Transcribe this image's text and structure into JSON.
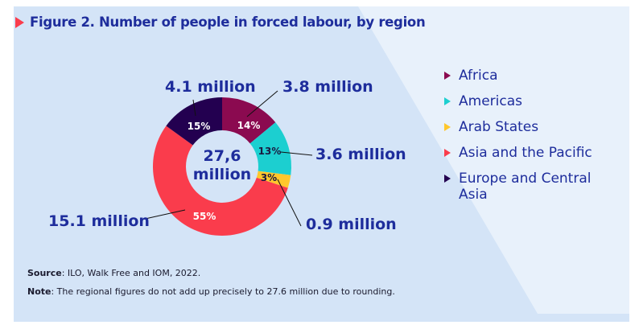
{
  "title": "Figure 2. Number of people in forced labour, by region",
  "chart_data": {
    "type": "pie",
    "title": "Figure 2. Number of people in forced labour, by region",
    "center_label": [
      "27,6",
      "million"
    ],
    "slices": [
      {
        "name": "Africa",
        "percent": 14,
        "value_label": "3.8 million",
        "color": "#8b0a50",
        "pct_label": "14%"
      },
      {
        "name": "Americas",
        "percent": 13,
        "value_label": "3.6 million",
        "color": "#1ccfd0",
        "pct_label": "13%"
      },
      {
        "name": "Arab States",
        "percent": 3,
        "value_label": "0.9 million",
        "color": "#ffc72c",
        "pct_label": "3%"
      },
      {
        "name": "Asia and the Pacific",
        "percent": 55,
        "value_label": "15.1 million",
        "color": "#fa3c4c",
        "pct_label": "55%"
      },
      {
        "name": "Europe and Central Asia",
        "percent": 15,
        "value_label": "4.1 million",
        "color": "#230050",
        "pct_label": "15%"
      }
    ],
    "legend_placement": "right"
  },
  "notes": {
    "source_label": "Source",
    "source_text": ": ILO, Walk Free and IOM, 2022.",
    "note_label": "Note",
    "note_text": ": The regional figures do not add up precisely to 27.6 million due to rounding."
  }
}
